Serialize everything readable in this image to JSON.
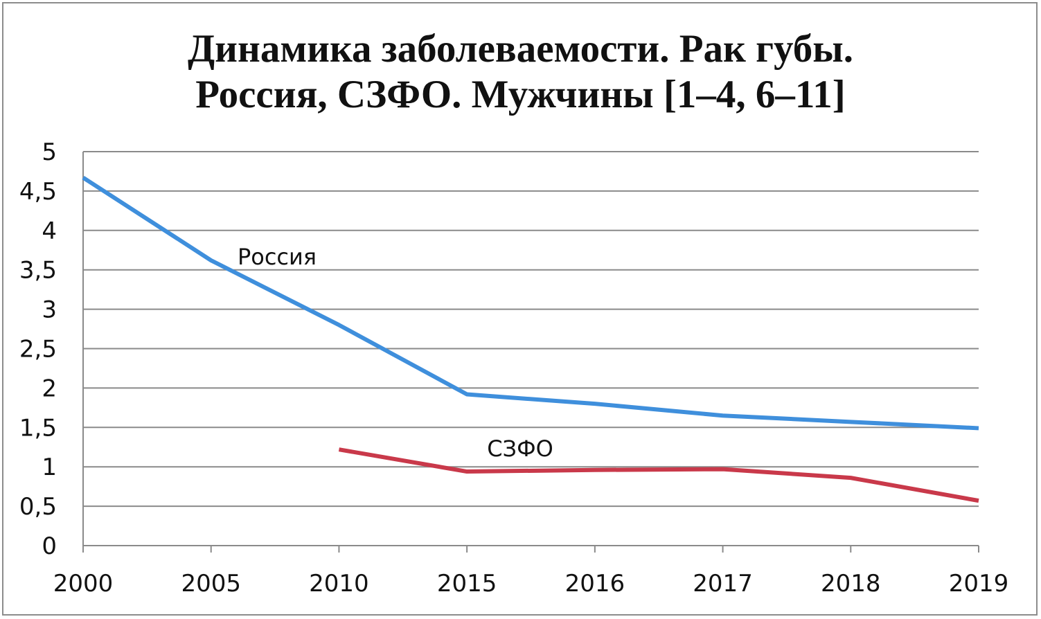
{
  "chart_data": {
    "type": "line",
    "title_lines": [
      "Динамика заболеваемости. Рак губы.",
      "Россия, СЗФО. Мужчины [1–4, 6–11]"
    ],
    "categories": [
      "2000",
      "2005",
      "2010",
      "2015",
      "2016",
      "2017",
      "2018",
      "2019"
    ],
    "yticks": [
      "0",
      "0,5",
      "1",
      "1,5",
      "2",
      "2,5",
      "3",
      "3,5",
      "4",
      "4,5",
      "5"
    ],
    "ylim": [
      0,
      5
    ],
    "grid": true,
    "series": [
      {
        "name": "Россия",
        "color": "#3f8fdc",
        "values": [
          4.67,
          3.62,
          2.8,
          1.92,
          1.8,
          1.65,
          1.57,
          1.49
        ]
      },
      {
        "name": "СЗФО",
        "color": "#c9394a",
        "values": [
          null,
          null,
          1.22,
          0.94,
          0.96,
          0.97,
          0.86,
          0.57
        ]
      }
    ]
  }
}
